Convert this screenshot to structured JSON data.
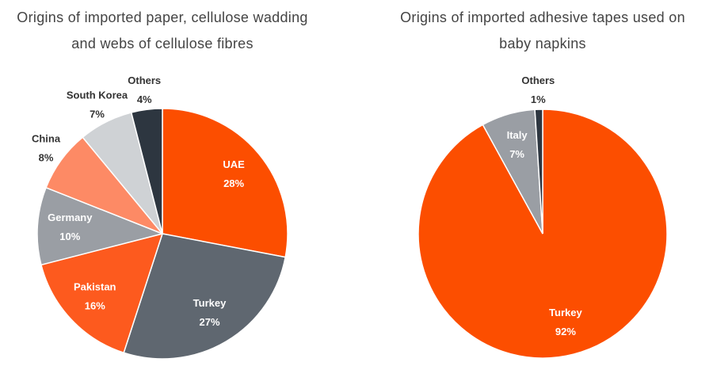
{
  "chart_data": [
    {
      "type": "pie",
      "title": "Origins of imported paper, cellulose wadding and webs of cellulose fibres",
      "categories": [
        "UAE",
        "Turkey",
        "Pakistan",
        "Germany",
        "China",
        "South Korea",
        "Others"
      ],
      "values": [
        28,
        27,
        16,
        10,
        8,
        7,
        4
      ],
      "value_labels": [
        "28%",
        "27%",
        "16%",
        "10%",
        "8%",
        "7%",
        "4%"
      ],
      "colors": [
        "#fc4e00",
        "#5f6770",
        "#fd5a1e",
        "#9a9ea4",
        "#fd8a65",
        "#cfd2d5",
        "#2d3640"
      ]
    },
    {
      "type": "pie",
      "title": "Origins of imported adhesive tapes used on baby napkins",
      "categories": [
        "Turkey",
        "Italy",
        "Others"
      ],
      "values": [
        92,
        7,
        1
      ],
      "value_labels": [
        "92%",
        "7%",
        "1%"
      ],
      "colors": [
        "#fc4e00",
        "#9a9ea4",
        "#2d3640"
      ]
    }
  ]
}
